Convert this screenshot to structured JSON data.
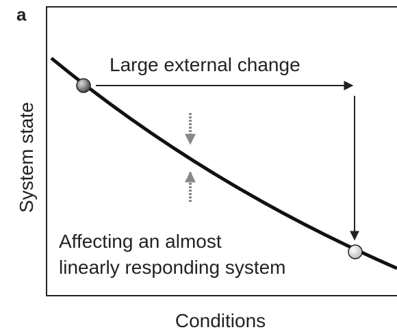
{
  "panel_label": "a",
  "axes": {
    "x_label": "Conditions",
    "y_label": "System state"
  },
  "annotations": {
    "top": "Large external change",
    "bottom": [
      "Affecting an almost",
      "linearly responding system"
    ]
  }
}
